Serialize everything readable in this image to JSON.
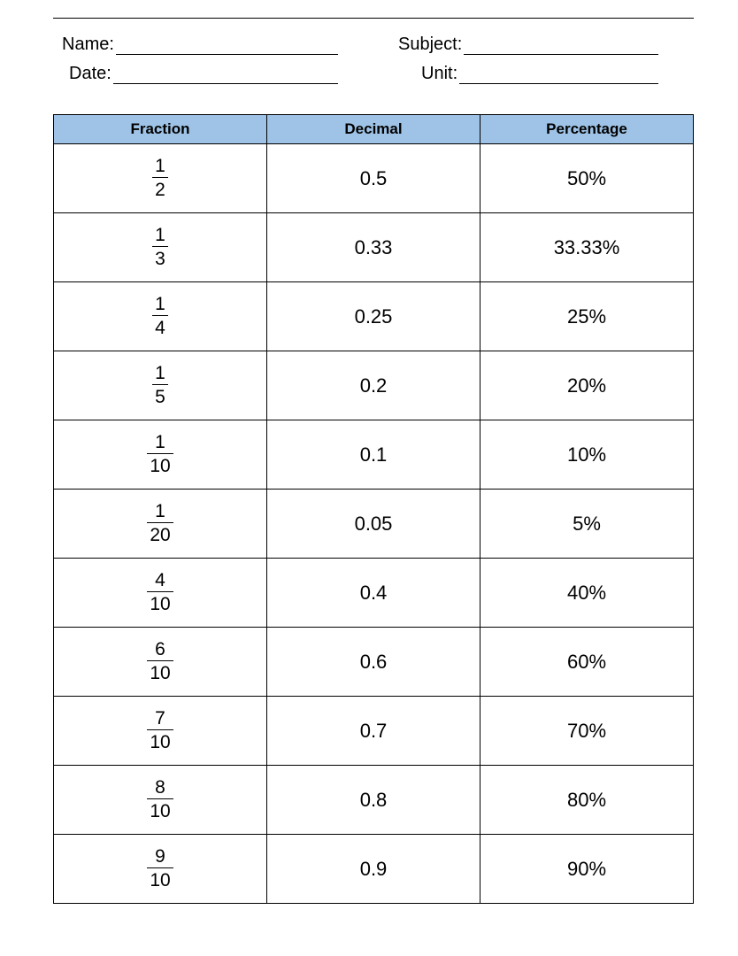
{
  "header": {
    "fields": [
      {
        "label": "Name:"
      },
      {
        "label": "Subject:"
      },
      {
        "label": "Date:"
      },
      {
        "label": "Unit:"
      }
    ]
  },
  "table": {
    "columns": [
      "Fraction",
      "Decimal",
      "Percentage"
    ],
    "header_bg": "#9ec3e6",
    "border_color": "#000000",
    "rows": [
      {
        "num": "1",
        "den": "2",
        "decimal": "0.5",
        "percentage": "50%"
      },
      {
        "num": "1",
        "den": "3",
        "decimal": "0.33",
        "percentage": "33.33%"
      },
      {
        "num": "1",
        "den": "4",
        "decimal": "0.25",
        "percentage": "25%"
      },
      {
        "num": "1",
        "den": "5",
        "decimal": "0.2",
        "percentage": "20%"
      },
      {
        "num": "1",
        "den": "10",
        "decimal": "0.1",
        "percentage": "10%"
      },
      {
        "num": "1",
        "den": "20",
        "decimal": "0.05",
        "percentage": "5%"
      },
      {
        "num": "4",
        "den": "10",
        "decimal": "0.4",
        "percentage": "40%"
      },
      {
        "num": "6",
        "den": "10",
        "decimal": "0.6",
        "percentage": "60%"
      },
      {
        "num": "7",
        "den": "10",
        "decimal": "0.7",
        "percentage": "70%"
      },
      {
        "num": "8",
        "den": "10",
        "decimal": "0.8",
        "percentage": "80%"
      },
      {
        "num": "9",
        "den": "10",
        "decimal": "0.9",
        "percentage": "90%"
      }
    ]
  }
}
